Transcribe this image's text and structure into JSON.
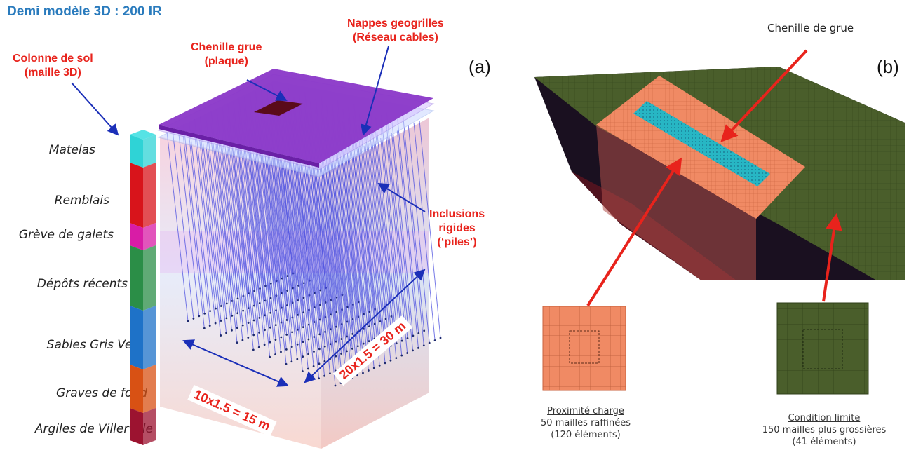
{
  "panel_a": {
    "title": "Demi modèle 3D : 200 IR",
    "tag": "(a)",
    "labels": {
      "colonne": [
        "Colonne de sol",
        "(maille 3D)"
      ],
      "chenille": [
        "Chenille grue",
        "(plaque)"
      ],
      "nappes": [
        "Nappes geogrilles",
        "(Réseau cables)"
      ],
      "inclusions": [
        "Inclusions",
        "rigides",
        "(‘piles’)"
      ]
    },
    "layers": [
      {
        "name": "Matelas",
        "color": "#2fd3d6"
      },
      {
        "name": "Remblais",
        "color": "#d8141b"
      },
      {
        "name": "Grève de galets",
        "color": "#d81ca6"
      },
      {
        "name": "Dépôts récents",
        "color": "#2b8e47"
      },
      {
        "name": "Sables Gris Vert",
        "color": "#1e72c8"
      },
      {
        "name": "Graves de fond",
        "color": "#d85114"
      },
      {
        "name": "Argiles de Villerville",
        "color": "#9c1330"
      }
    ],
    "dim_width": "10x1.5 = 15 m",
    "dim_length": "20x1.5 = 30 m"
  },
  "panel_b": {
    "tag": "(b)",
    "top_label": "Chenille de grue",
    "left_caption": {
      "title": "Proximité charge",
      "line1": "50 mailles raffinées",
      "line2": "(120 éléments)"
    },
    "right_caption": {
      "title": "Condition limite",
      "line1": "150 mailles plus grossières",
      "line2": "(41 éléments)"
    },
    "colors": {
      "coarse": "#4a5e2b",
      "fine": "#f08a64",
      "crane": "#27b6c4",
      "arrow": "#e8231c"
    }
  }
}
